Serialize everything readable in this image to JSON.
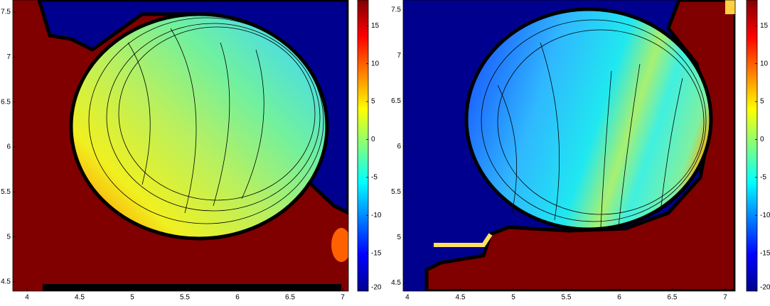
{
  "chart_data": [
    {
      "type": "contour",
      "colormap": "jet",
      "xlim": [
        3.865,
        7.054
      ],
      "ylim": [
        4.397,
        7.634
      ],
      "xticks": [
        4,
        4.5,
        5,
        5.5,
        6,
        6.5,
        7
      ],
      "yticks": [
        4.5,
        5,
        5.5,
        6,
        6.5,
        7,
        7.5
      ],
      "clim": [
        -20,
        18.4
      ],
      "cticks": [
        -20,
        -15,
        -10,
        -5,
        0,
        5,
        10,
        15
      ]
    },
    {
      "type": "contour",
      "colormap": "jet",
      "xlim": [
        3.96,
        7.094
      ],
      "ylim": [
        4.41,
        7.61
      ],
      "xticks": [
        4,
        4.5,
        5,
        5.5,
        6,
        6.5,
        7
      ],
      "yticks": [
        4.5,
        5,
        5.5,
        6,
        6.5,
        7,
        7.5
      ],
      "clim": [
        -20,
        18.4
      ],
      "cticks": [
        -20,
        -15,
        -10,
        -5,
        0,
        5,
        10,
        15
      ]
    }
  ]
}
